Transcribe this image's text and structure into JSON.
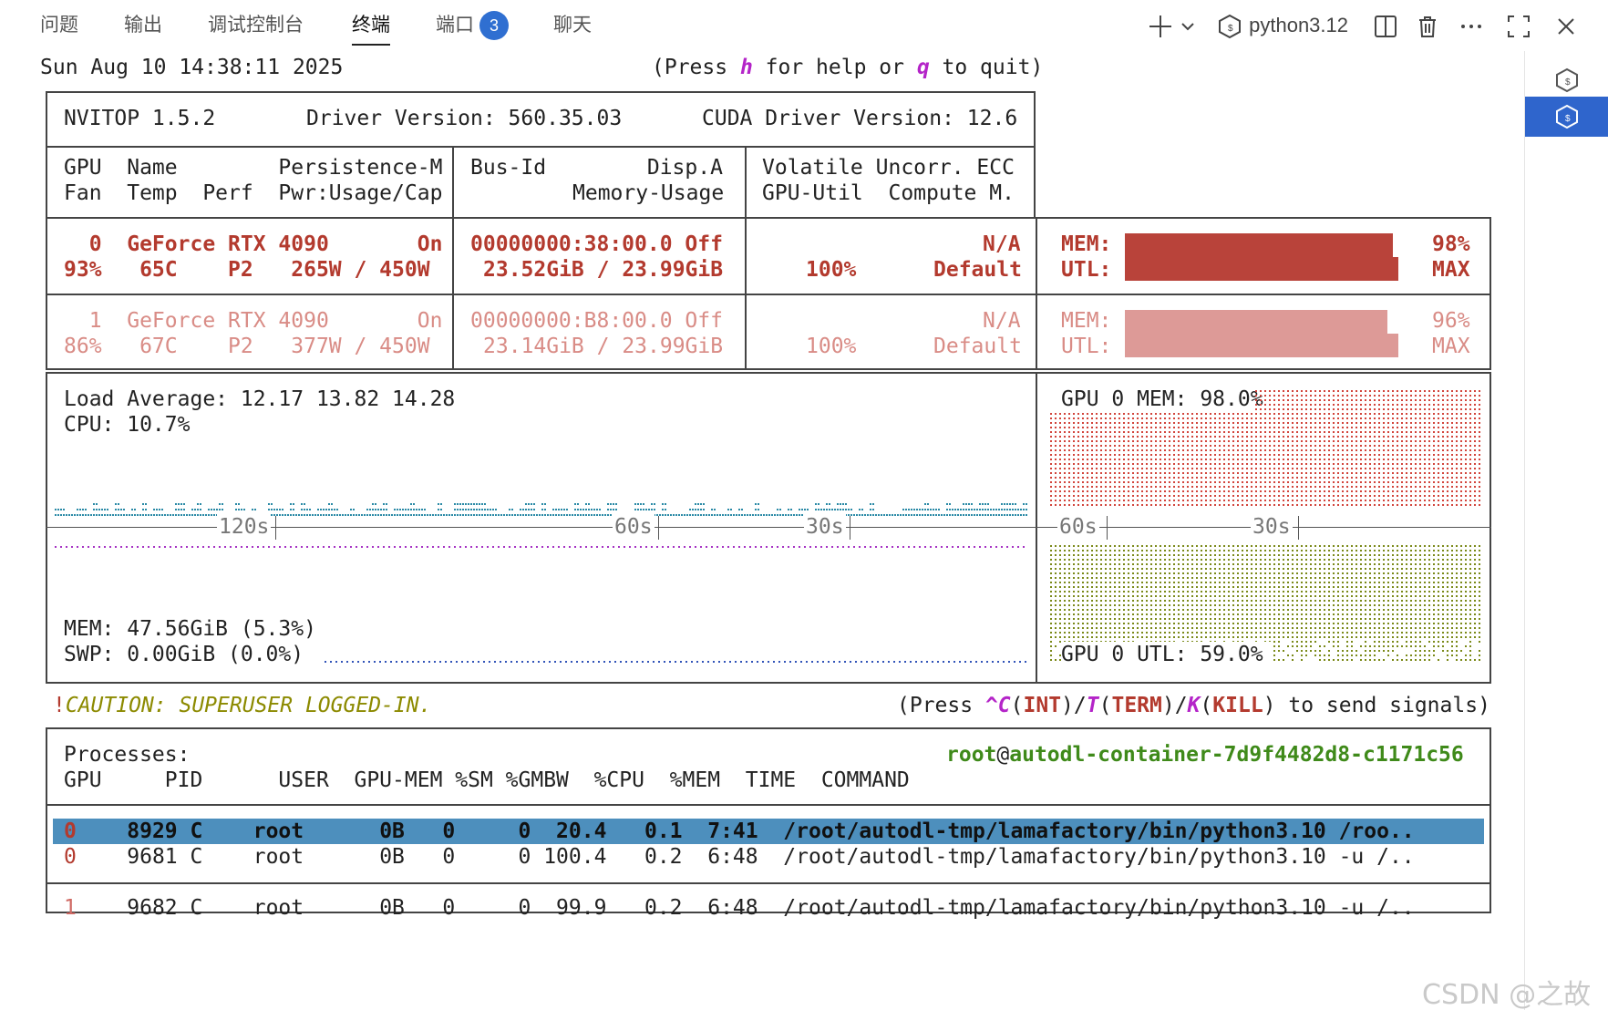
{
  "tabs": [
    {
      "label": "问题"
    },
    {
      "label": "输出"
    },
    {
      "label": "调试控制台"
    },
    {
      "label": "终端",
      "active": true
    },
    {
      "label": "端口",
      "badge": "3"
    },
    {
      "label": "聊天"
    }
  ],
  "toolbar": {
    "shell_label": "python3.12"
  },
  "header": {
    "datetime": "Sun Aug 10 14:38:11 2025",
    "help_pre": "(Press ",
    "help_key": "h",
    "help_mid": " for help or ",
    "quit_key": "q",
    "help_post": " to quit)"
  },
  "nvitop": {
    "title": "NVITOP 1.5.2",
    "driver": "Driver Version: 560.35.03",
    "cuda": "CUDA Driver Version: 12.6",
    "col1_line1": "GPU  Name        Persistence-M",
    "col1_line2": "Fan  Temp  Perf  Pwr:Usage/Cap",
    "col2_line1": "Bus-Id        Disp.A",
    "col2_line2": "Memory-Usage",
    "col3_line1": "Volatile Uncorr. ECC",
    "col3_line2": "GPU-Util  Compute M."
  },
  "gpus": [
    {
      "l1": "  0  GeForce RTX 4090       On",
      "l2": "93%   65C    P2   265W / 450W",
      "bus": "00000000:38:00.0 Off",
      "mem": "23.52GiB / 23.99GiB",
      "ecc": "N/A",
      "util": "100%",
      "compute": "Default",
      "mem_label": "MEM:",
      "utl_label": "UTL:",
      "mem_pct": "98%",
      "utl_pct": "MAX",
      "mem_frac": 0.98,
      "utl_frac": 1.0
    },
    {
      "l1": "  1  GeForce RTX 4090       On",
      "l2": "86%   67C    P2   377W / 450W",
      "bus": "00000000:B8:00.0 Off",
      "mem": "23.14GiB / 23.99GiB",
      "ecc": "N/A",
      "util": "100%",
      "compute": "Default",
      "mem_label": "MEM:",
      "utl_label": "UTL:",
      "mem_pct": "96%",
      "utl_pct": "MAX",
      "mem_frac": 0.96,
      "utl_frac": 1.0
    }
  ],
  "host": {
    "load": "Load Average: 12.17 13.82 14.28",
    "cpu": "CPU: 10.7%",
    "mem": "MEM: 47.56GiB (5.3%)",
    "swp": "SWP: 0.00GiB (0.0%)",
    "tick_120": "120s",
    "tick_60": "60s",
    "tick_30": "30s",
    "gpu_mem": "GPU 0 MEM: 98.0%",
    "gpu_utl": "GPU 0 UTL: 59.0%",
    "gtick_60": "60s",
    "gtick_30": "30s"
  },
  "caution": {
    "bang": "!",
    "text": "CAUTION: SUPERUSER LOGGED-IN.",
    "p1": "(Press ",
    "k1": "^C",
    "p2": "(",
    "i1": "INT",
    "p3": ")/",
    "k2": "T",
    "p4": "(",
    "i2": "TERM",
    "p5": ")/",
    "k3": "K",
    "p6": "(",
    "i3": "KILL",
    "p7": ") to send signals)"
  },
  "processes": {
    "title": "Processes:",
    "user": "root",
    "at": "@",
    "host": "autodl-container-7d9f4482d8-c1171c56",
    "header": "GPU     PID      USER  GPU-MEM %SM %GMBW  %CPU  %MEM  TIME  COMMAND",
    "rows": [
      {
        "gpu": "0",
        "rest": "    8929 C    root      0B   0     0  20.4   0.1  7:41  /root/autodl-tmp/lamafactory/bin/python3.10 /roo..",
        "selected": true
      },
      {
        "gpu": "0",
        "rest": "    9681 C    root      0B   0     0 100.4   0.2  6:48  /root/autodl-tmp/lamafactory/bin/python3.10 -u /.."
      },
      {
        "gpu": "1",
        "rest": "    9682 C    root      0B   0     0  99.9   0.2  6:48  /root/autodl-tmp/lamafactory/bin/python3.10 -u /.."
      }
    ]
  },
  "colors": {
    "gpu0": "#b9433a",
    "gpu1": "#dd9a97",
    "cpu_dots": "#2a8aa6",
    "mem_dots": "#a633c4",
    "swp_dots": "#3153b8",
    "gpu_mem_dots": "#d2443b",
    "gpu_utl_dots": "#7b8a1a",
    "selection": "#4d8fbd"
  },
  "watermark": "CSDN @之故"
}
